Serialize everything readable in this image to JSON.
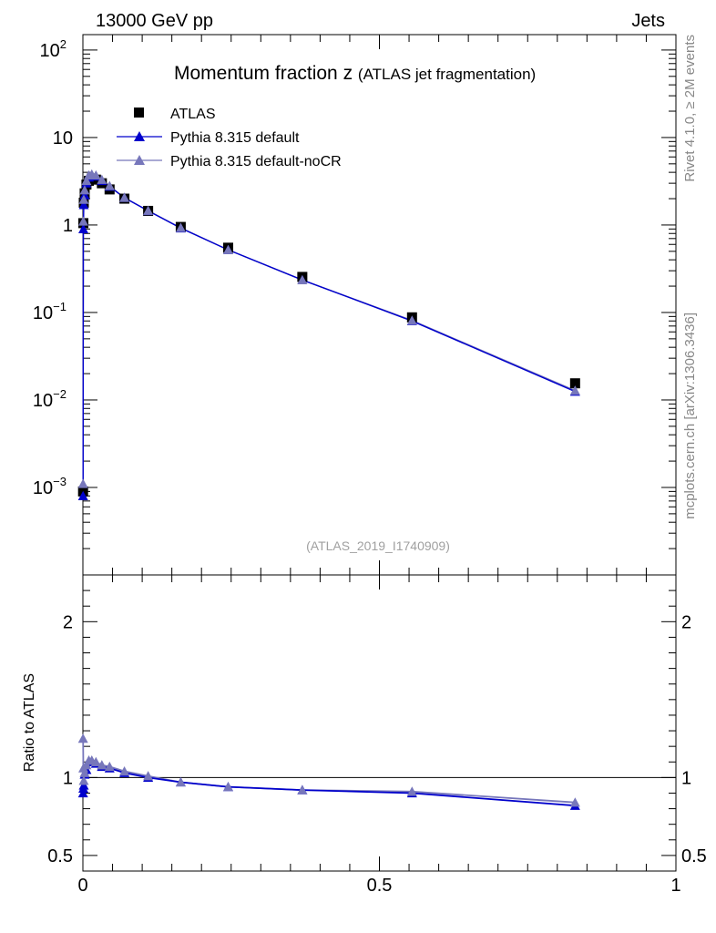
{
  "header": {
    "left": "13000 GeV pp",
    "right": "Jets"
  },
  "side": {
    "rivet": "Rivet 4.1.0, ≥ 2M events",
    "mcplots": "mcplots.cern.ch [arXiv:1306.3436]"
  },
  "chart_data": {
    "type": "scatter",
    "title": "Momentum fraction z",
    "subtitle": "(ATLAS jet fragmentation)",
    "analysis_id": "(ATLAS_2019_I1740909)",
    "xlabel": "",
    "ylabel_ratio": "Ratio to ATLAS",
    "xlim": [
      0,
      1
    ],
    "ylim_main": [
      0.0001,
      150
    ],
    "ylim_ratio": [
      0.4,
      2.3
    ],
    "x_ticks": [
      "0",
      "0.5",
      "1"
    ],
    "y_ticks_main": [
      {
        "mant": "10",
        "exp": "2"
      },
      {
        "mant": "10",
        "exp": ""
      },
      {
        "mant": "1",
        "exp": ""
      },
      {
        "mant": "10",
        "exp": "−1"
      },
      {
        "mant": "10",
        "exp": "−2"
      },
      {
        "mant": "10",
        "exp": "−3"
      }
    ],
    "y_ticks_ratio": [
      "2",
      "1",
      "0.5"
    ],
    "legend": [
      "ATLAS",
      "Pythia 8.315 default",
      "Pythia 8.315 default-noCR"
    ],
    "colors": {
      "data": "#000000",
      "default": "#0000cc",
      "nocr": "#7777bb"
    },
    "x": [
      0.0003,
      0.0008,
      0.0015,
      0.003,
      0.006,
      0.01,
      0.015,
      0.022,
      0.032,
      0.045,
      0.07,
      0.11,
      0.165,
      0.245,
      0.37,
      0.555,
      0.83
    ],
    "series": [
      {
        "name": "ATLAS",
        "values": [
          0.0009,
          1.05,
          1.8,
          2.3,
          2.9,
          3.2,
          3.4,
          3.3,
          3.0,
          2.55,
          2.0,
          1.45,
          0.95,
          0.55,
          0.255,
          0.088,
          0.0155
        ],
        "ratio": [
          1.0,
          1.0,
          1.0,
          1.0,
          1.0,
          1.0,
          1.0,
          1.0,
          1.0,
          1.0,
          1.0,
          1.0,
          1.0,
          1.0,
          1.0,
          1.0,
          1.0
        ]
      },
      {
        "name": "Pythia 8.315 default",
        "values": [
          0.0008,
          0.9,
          1.7,
          2.2,
          3.0,
          3.5,
          3.7,
          3.6,
          3.2,
          2.75,
          2.05,
          1.45,
          0.92,
          0.52,
          0.235,
          0.08,
          0.0125
        ],
        "ratio": [
          0.9,
          0.93,
          0.95,
          1.02,
          1.05,
          1.1,
          1.1,
          1.09,
          1.07,
          1.06,
          1.03,
          1.0,
          0.97,
          0.94,
          0.92,
          0.9,
          0.82
        ]
      },
      {
        "name": "Pythia 8.315 default-noCR",
        "values": [
          0.0011,
          1.1,
          1.95,
          2.5,
          3.2,
          3.7,
          3.8,
          3.7,
          3.3,
          2.8,
          2.05,
          1.46,
          0.93,
          0.52,
          0.235,
          0.081,
          0.0128
        ],
        "ratio": [
          1.25,
          1.06,
          0.98,
          1.03,
          1.08,
          1.11,
          1.11,
          1.1,
          1.08,
          1.07,
          1.04,
          1.01,
          0.97,
          0.94,
          0.92,
          0.91,
          0.84
        ]
      }
    ]
  }
}
